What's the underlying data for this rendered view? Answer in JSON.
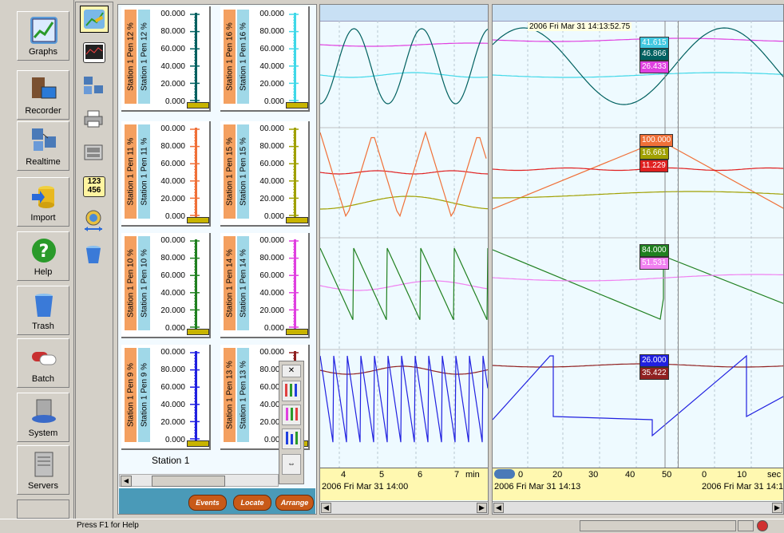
{
  "nav": {
    "items": [
      {
        "label": "Graphs",
        "icon": "graphs-icon",
        "color": "#5a9ad8"
      },
      {
        "label": "Recorder",
        "icon": "recorder-icon",
        "color": "#7a5030"
      },
      {
        "label": "Realtime",
        "icon": "realtime-icon",
        "color": "#4a7ab8"
      },
      {
        "label": "Import",
        "icon": "import-icon",
        "color": "#e8b820"
      },
      {
        "label": "Help",
        "icon": "help-icon",
        "color": "#2a9a2a"
      },
      {
        "label": "Trash",
        "icon": "trash-icon",
        "color": "#3a7ad8"
      },
      {
        "label": "Batch",
        "icon": "batch-icon",
        "color": "#c83030"
      },
      {
        "label": "System",
        "icon": "system-icon",
        "color": "#3a6ac8"
      },
      {
        "label": "Servers",
        "icon": "servers-icon",
        "color": "#888888"
      }
    ]
  },
  "tools": [
    {
      "icon": "meter-tool-icon",
      "active": true
    },
    {
      "icon": "chart-tool-icon"
    },
    {
      "icon": "network-tool-icon"
    },
    {
      "icon": "print-tool-icon"
    },
    {
      "icon": "keyboard-tool-icon"
    },
    {
      "icon": "numeric-tool-icon",
      "text": "123 456"
    },
    {
      "icon": "globe-tool-icon"
    },
    {
      "icon": "trash-tool-icon"
    }
  ],
  "meters": [
    {
      "name": "Station 1 Pen 12 %",
      "color": "#006060",
      "strip_a": "#f4a060",
      "strip_b": "#a0d8e8"
    },
    {
      "name": "Station 1 Pen 16 %",
      "color": "#40d8e8",
      "strip_a": "#f4a060",
      "strip_b": "#a0d8e8"
    },
    {
      "name": "Station 1 Pen 11 %",
      "color": "#f07038",
      "strip_a": "#f4a060",
      "strip_b": "#a0d8e8"
    },
    {
      "name": "Station 1 Pen 15 %",
      "color": "#a0a000",
      "strip_a": "#f4a060",
      "strip_b": "#a0d8e8"
    },
    {
      "name": "Station 1 Pen 10 %",
      "color": "#208020",
      "strip_a": "#f4a060",
      "strip_b": "#a0d8e8"
    },
    {
      "name": "Station 1 Pen 14 %",
      "color": "#e040e0",
      "strip_a": "#f4a060",
      "strip_b": "#a0d8e8"
    },
    {
      "name": "Station 1 Pen 9 %",
      "color": "#2020e0",
      "strip_a": "#f4a060",
      "strip_b": "#a0d8e8"
    },
    {
      "name": "Station 1 Pen 13 %",
      "color": "#902020",
      "strip_a": "#f4a060",
      "strip_b": "#a0d8e8"
    }
  ],
  "scale_values": [
    "00.000",
    "80.000",
    "60.000",
    "40.000",
    "20.000",
    "0.000"
  ],
  "station_label": "Station 1",
  "buttons": {
    "events": "Events",
    "locate": "Locate",
    "arrange": "Arrange"
  },
  "graph_left": {
    "ticks": [
      "4",
      "5",
      "6",
      "7",
      "min"
    ],
    "date": "2006 Fri Mar 31  14:00"
  },
  "graph_right": {
    "cursor_time": "2006 Fri Mar 31  14:13:52.75",
    "ticks": [
      "0",
      "20",
      "30",
      "40",
      "50",
      "0",
      "10",
      "sec"
    ],
    "date_left": "2006 Fri Mar 31  14:13",
    "date_right": "2006 Fri Mar 31  14:1",
    "values": [
      {
        "text": "41.615",
        "color": "#40c8e0"
      },
      {
        "text": "46.866",
        "color": "#006060"
      },
      {
        "text": "26.433",
        "color": "#e040e0"
      },
      {
        "text": "100.000",
        "color": "#f07038"
      },
      {
        "text": "16.661",
        "color": "#a0a000"
      },
      {
        "text": "11.229",
        "color": "#e02020"
      },
      {
        "text": "84.000",
        "color": "#208020"
      },
      {
        "text": "51.531",
        "color": "#f080f0"
      },
      {
        "text": "26.000",
        "color": "#2020e0"
      },
      {
        "text": "35.422",
        "color": "#902020"
      }
    ]
  },
  "status": {
    "message": "Press F1 for Help"
  }
}
